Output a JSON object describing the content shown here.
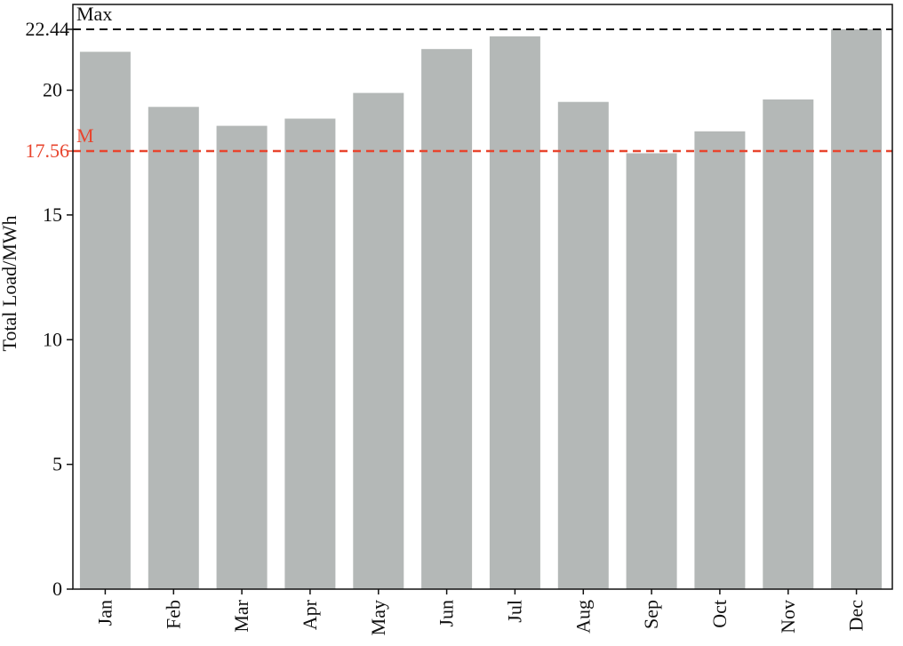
{
  "chart_data": {
    "type": "bar",
    "title": "",
    "xlabel": "",
    "ylabel": "Total Load/MWh",
    "categories": [
      "Jan",
      "Feb",
      "Mar",
      "Apr",
      "May",
      "Jun",
      "Jul",
      "Aug",
      "Sep",
      "Oct",
      "Nov",
      "Dec"
    ],
    "values": [
      21.54,
      19.33,
      18.57,
      18.86,
      19.89,
      21.65,
      22.16,
      19.53,
      17.47,
      18.35,
      19.63,
      22.44
    ],
    "ylim": [
      0,
      22.44
    ],
    "yticks": [
      "0",
      "5",
      "10",
      "15",
      "20"
    ],
    "grid": false,
    "bar_color": "#b4b8b7",
    "reference_lines": [
      {
        "label": "Max",
        "value_label": "22.44",
        "value": 22.44,
        "color": "#111111"
      },
      {
        "label": "M",
        "value_label": "17.56",
        "value": 17.56,
        "color": "#e8452e"
      }
    ]
  }
}
